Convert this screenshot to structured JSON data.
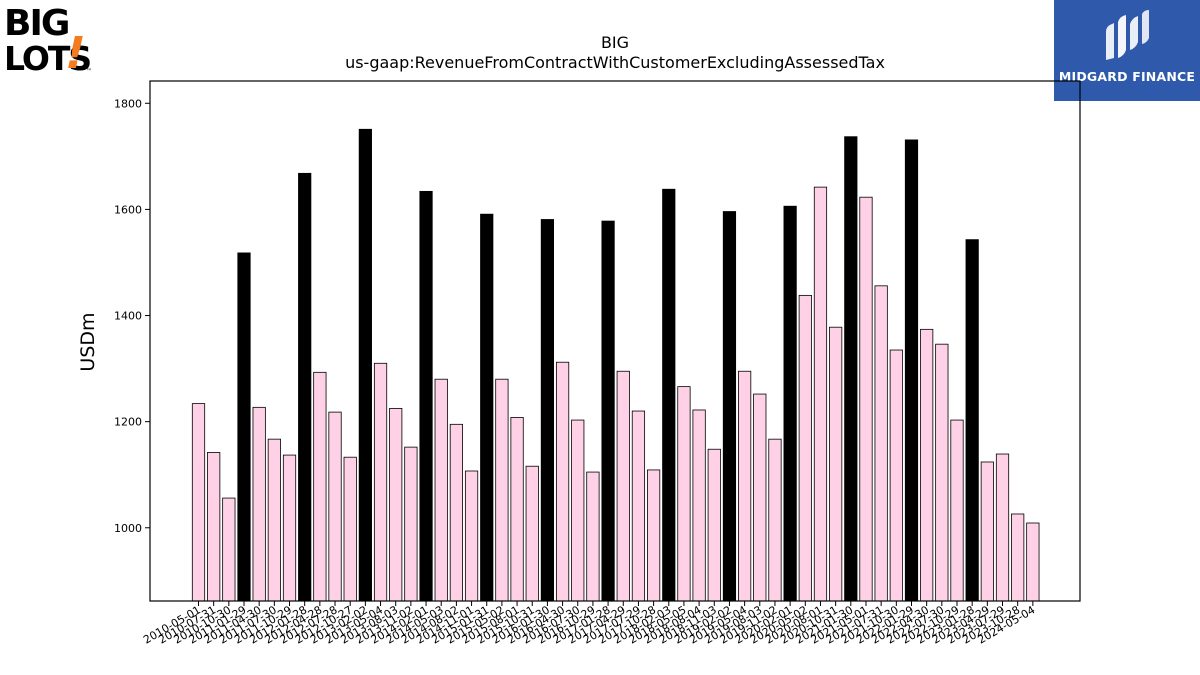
{
  "brand": {
    "left_logo_line1": "BIG",
    "left_logo_line2": "LOTS",
    "left_logo_mark": "!",
    "left_logo_tm": "™",
    "left_logo_accent": "#f47b20",
    "right_logo_text": "MIDGARD FINANCE",
    "right_logo_bg": "#2f5aab"
  },
  "chart_data": {
    "type": "bar",
    "title": "BIG",
    "subtitle": "us-gaap:RevenueFromContractWithCustomerExcludingAssessedTax",
    "xlabel": "",
    "ylabel": "USDm",
    "ylim": [
      862,
      1842
    ],
    "yticks": [
      1000,
      1200,
      1400,
      1600,
      1800
    ],
    "grid": false,
    "colors": {
      "quarter": "#ffd1e6",
      "annual": "#000000",
      "edge": "#000000"
    },
    "categories": [
      "2010-05-01",
      "2010-07-31",
      "2010-10-30",
      "2011-01-29",
      "2011-04-30",
      "2011-07-30",
      "2011-10-29",
      "2012-01-28",
      "2012-04-28",
      "2012-07-28",
      "2012-10-27",
      "2013-02-02",
      "2013-05-04",
      "2013-08-03",
      "2013-11-02",
      "2014-02-01",
      "2014-05-03",
      "2014-08-02",
      "2014-11-01",
      "2015-01-31",
      "2015-05-02",
      "2015-08-01",
      "2015-10-31",
      "2016-01-30",
      "2016-04-30",
      "2016-07-30",
      "2016-10-29",
      "2017-01-28",
      "2017-04-29",
      "2017-07-29",
      "2017-10-28",
      "2018-02-03",
      "2018-05-05",
      "2018-08-04",
      "2018-11-03",
      "2019-02-02",
      "2019-05-04",
      "2019-08-03",
      "2019-11-02",
      "2020-02-01",
      "2020-05-02",
      "2020-08-01",
      "2020-10-31",
      "2021-01-30",
      "2021-05-01",
      "2021-07-31",
      "2021-10-30",
      "2022-01-29",
      "2022-04-30",
      "2022-07-30",
      "2022-10-29",
      "2023-01-28",
      "2023-04-29",
      "2023-07-29",
      "2023-10-28",
      "2024-05-04"
    ],
    "values": [
      1234,
      1142,
      1056,
      1518,
      1227,
      1167,
      1137,
      1668,
      1293,
      1218,
      1133,
      1751,
      1310,
      1225,
      1152,
      1634,
      1280,
      1195,
      1107,
      1591,
      1280,
      1208,
      1116,
      1581,
      1312,
      1203,
      1105,
      1578,
      1295,
      1220,
      1109,
      1638,
      1266,
      1222,
      1148,
      1596,
      1295,
      1252,
      1167,
      1606,
      1438,
      1642,
      1378,
      1737,
      1623,
      1456,
      1335,
      1731,
      1374,
      1346,
      1203,
      1543,
      1124,
      1139,
      1026,
      1009
    ],
    "bar_kind": [
      "q",
      "q",
      "q",
      "a",
      "q",
      "q",
      "q",
      "a",
      "q",
      "q",
      "q",
      "a",
      "q",
      "q",
      "q",
      "a",
      "q",
      "q",
      "q",
      "a",
      "q",
      "q",
      "q",
      "a",
      "q",
      "q",
      "q",
      "a",
      "q",
      "q",
      "q",
      "a",
      "q",
      "q",
      "q",
      "a",
      "q",
      "q",
      "q",
      "a",
      "q",
      "q",
      "q",
      "a",
      "q",
      "q",
      "q",
      "a",
      "q",
      "q",
      "q",
      "a",
      "q",
      "q",
      "q",
      "q"
    ]
  }
}
